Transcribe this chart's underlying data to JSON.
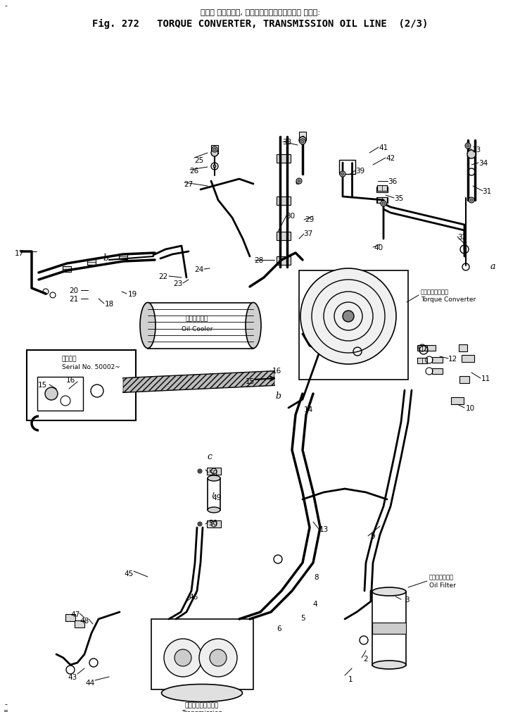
{
  "title_japanese": "トルク コンバータ, トランスミッションオイル ライン:",
  "title_english": "Fig. 272   TORQUE CONVERTER, TRANSMISSION OIL LINE  (2/3)",
  "background_color": "#ffffff",
  "line_color": "#000000",
  "figsize": [
    7.39,
    10.12
  ],
  "dpi": 100,
  "parts": {
    "oil_cooler_label_jp": "オイルクーラ",
    "oil_cooler_label_en": "Oil Cooler",
    "torque_converter_label_jp": "トルクコンバータ",
    "torque_converter_label_en": "Torque Converter",
    "oil_filter_label_jp": "オイルフィルタ",
    "oil_filter_label_en": "Oil Filter",
    "transmission_label_jp": "トランスミッション",
    "transmission_label_en": "Transmission",
    "serial_label_jp": "適用号機",
    "serial_label_en": "Serial No. 50002~"
  },
  "font_size_title_jp": 8,
  "font_size_title_en": 10,
  "font_size_parts": 8,
  "font_size_labels": 6.5
}
